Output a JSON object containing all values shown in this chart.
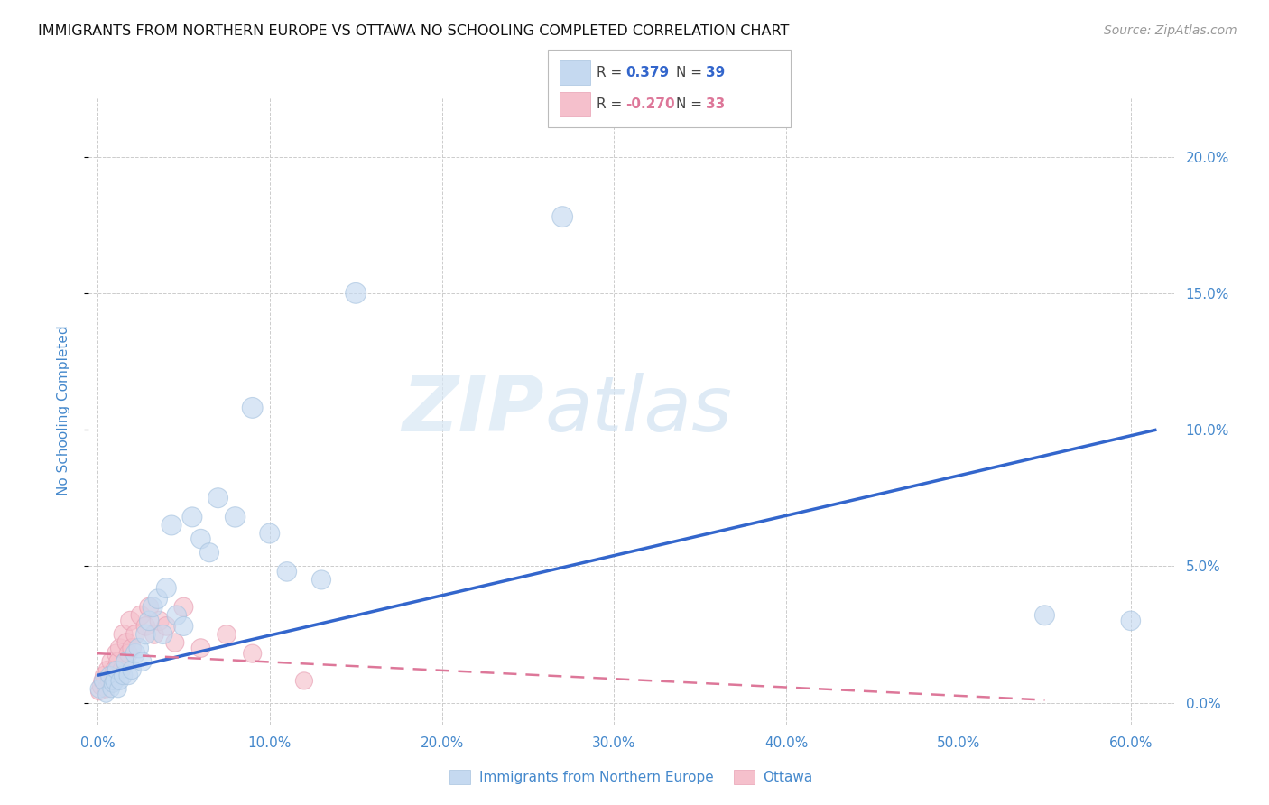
{
  "title": "IMMIGRANTS FROM NORTHERN EUROPE VS OTTAWA NO SCHOOLING COMPLETED CORRELATION CHART",
  "source": "Source: ZipAtlas.com",
  "ylabel": "No Schooling Completed",
  "legend_blue_label": "Immigrants from Northern Europe",
  "legend_pink_label": "Ottawa",
  "r_blue": 0.379,
  "n_blue": 39,
  "r_pink": -0.27,
  "n_pink": 33,
  "xlim": [
    -0.005,
    0.625
  ],
  "ylim": [
    -0.008,
    0.222
  ],
  "xticks": [
    0.0,
    0.1,
    0.2,
    0.3,
    0.4,
    0.5,
    0.6
  ],
  "yticks": [
    0.0,
    0.05,
    0.1,
    0.15,
    0.2
  ],
  "blue_color": "#c5d9f0",
  "blue_edge_color": "#a8c4e0",
  "blue_line_color": "#3366cc",
  "pink_color": "#f5c0cc",
  "pink_edge_color": "#e8a0b4",
  "pink_line_color": "#dd7799",
  "blue_scatter_x": [
    0.001,
    0.003,
    0.005,
    0.007,
    0.008,
    0.009,
    0.01,
    0.011,
    0.012,
    0.013,
    0.015,
    0.016,
    0.018,
    0.02,
    0.022,
    0.024,
    0.026,
    0.028,
    0.03,
    0.032,
    0.035,
    0.038,
    0.04,
    0.043,
    0.046,
    0.05,
    0.055,
    0.06,
    0.065,
    0.07,
    0.08,
    0.09,
    0.1,
    0.11,
    0.13,
    0.15,
    0.27,
    0.55,
    0.6
  ],
  "blue_scatter_y": [
    0.005,
    0.008,
    0.003,
    0.01,
    0.005,
    0.007,
    0.008,
    0.012,
    0.005,
    0.008,
    0.01,
    0.015,
    0.01,
    0.012,
    0.018,
    0.02,
    0.015,
    0.025,
    0.03,
    0.035,
    0.038,
    0.025,
    0.042,
    0.065,
    0.032,
    0.028,
    0.068,
    0.06,
    0.055,
    0.075,
    0.068,
    0.108,
    0.062,
    0.048,
    0.045,
    0.15,
    0.178,
    0.032,
    0.03
  ],
  "blue_scatter_sizes": [
    200,
    180,
    160,
    200,
    180,
    200,
    220,
    200,
    180,
    200,
    220,
    200,
    220,
    220,
    240,
    240,
    220,
    240,
    240,
    250,
    240,
    230,
    250,
    250,
    240,
    230,
    250,
    240,
    230,
    250,
    260,
    270,
    250,
    240,
    230,
    270,
    270,
    250,
    240
  ],
  "pink_scatter_x": [
    0.001,
    0.002,
    0.003,
    0.004,
    0.005,
    0.006,
    0.007,
    0.008,
    0.009,
    0.01,
    0.011,
    0.012,
    0.013,
    0.014,
    0.015,
    0.016,
    0.017,
    0.018,
    0.019,
    0.02,
    0.022,
    0.025,
    0.028,
    0.03,
    0.033,
    0.036,
    0.04,
    0.045,
    0.05,
    0.06,
    0.075,
    0.09,
    0.12
  ],
  "pink_scatter_y": [
    0.004,
    0.006,
    0.008,
    0.01,
    0.005,
    0.012,
    0.008,
    0.015,
    0.01,
    0.012,
    0.018,
    0.015,
    0.02,
    0.012,
    0.025,
    0.015,
    0.022,
    0.018,
    0.03,
    0.02,
    0.025,
    0.032,
    0.028,
    0.035,
    0.025,
    0.03,
    0.028,
    0.022,
    0.035,
    0.02,
    0.025,
    0.018,
    0.008
  ],
  "pink_scatter_sizes": [
    180,
    190,
    200,
    210,
    190,
    210,
    200,
    220,
    200,
    210,
    220,
    210,
    220,
    200,
    230,
    210,
    220,
    210,
    230,
    220,
    220,
    230,
    220,
    230,
    220,
    230,
    220,
    210,
    230,
    220,
    220,
    210,
    190
  ],
  "blue_trend_x": [
    0.0,
    0.615
  ],
  "blue_trend_y": [
    0.01,
    0.1
  ],
  "pink_trend_x": [
    0.0,
    0.55
  ],
  "pink_trend_y": [
    0.018,
    0.001
  ],
  "background_color": "#ffffff",
  "grid_color": "#cccccc",
  "title_color": "#111111",
  "source_color": "#999999",
  "title_fontsize": 11.5,
  "tick_label_color": "#4488cc",
  "ylabel_color": "#4488cc"
}
